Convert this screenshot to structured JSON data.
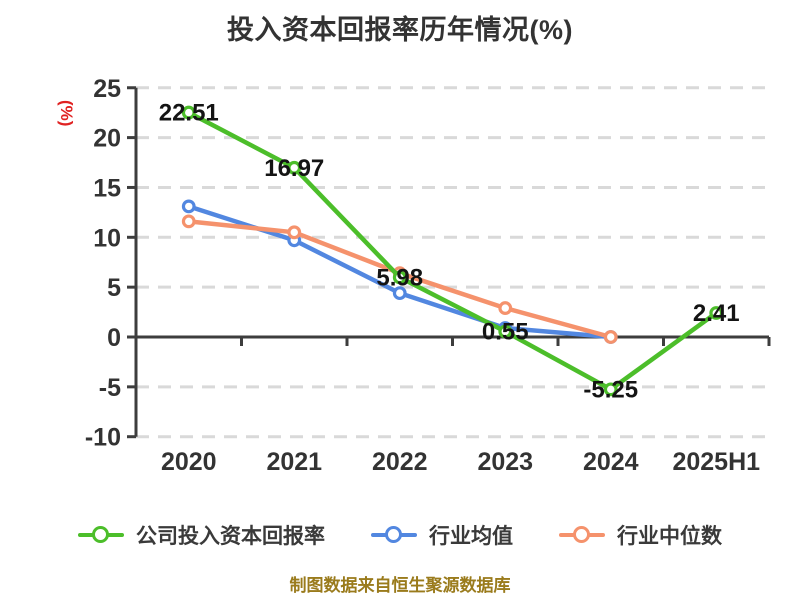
{
  "title": "投入资本回报率历年情况(%)",
  "y_axis_label": "(%)",
  "footer": "制图数据来自恒生聚源数据库",
  "colors": {
    "title": "#333333",
    "axis": "#3d3d3d",
    "grid": "#d9d9d9",
    "tick_label": "#333333",
    "data_label": "#141414",
    "y_axis_label": "#e02222",
    "legend_text": "#3a3a3a",
    "footer_text": "#9a7b1c",
    "series_green": "#4cbe2a",
    "series_blue": "#5287e0",
    "series_orange": "#f5926c",
    "marker_fill": "#ffffff"
  },
  "chart_data": {
    "type": "line",
    "title": "投入资本回报率历年情况(%)",
    "xlabel": "",
    "ylabel": "(%)",
    "categories": [
      "2020",
      "2021",
      "2022",
      "2023",
      "2024",
      "2025H1"
    ],
    "y_ticks": [
      25,
      20,
      15,
      10,
      5,
      0,
      -5,
      -10
    ],
    "ylim": [
      -10,
      25
    ],
    "grid": "horizontal-dashed",
    "legend_position": "bottom",
    "series": [
      {
        "name": "公司投入资本回报率",
        "color": "#4cbe2a",
        "values": [
          22.51,
          16.97,
          5.98,
          0.55,
          -5.25,
          2.41
        ],
        "point_labels": [
          "22.51",
          "16.97",
          "5.98",
          "0.55",
          "-5.25",
          "2.41"
        ],
        "labels_shown": true
      },
      {
        "name": "行业均值",
        "color": "#5287e0",
        "values": [
          13.1,
          9.7,
          4.4,
          0.9,
          0.0,
          null
        ],
        "point_labels": [],
        "labels_shown": false
      },
      {
        "name": "行业中位数",
        "color": "#f5926c",
        "values": [
          11.6,
          10.5,
          6.4,
          2.9,
          0.0,
          null
        ],
        "point_labels": [],
        "labels_shown": false
      }
    ]
  }
}
